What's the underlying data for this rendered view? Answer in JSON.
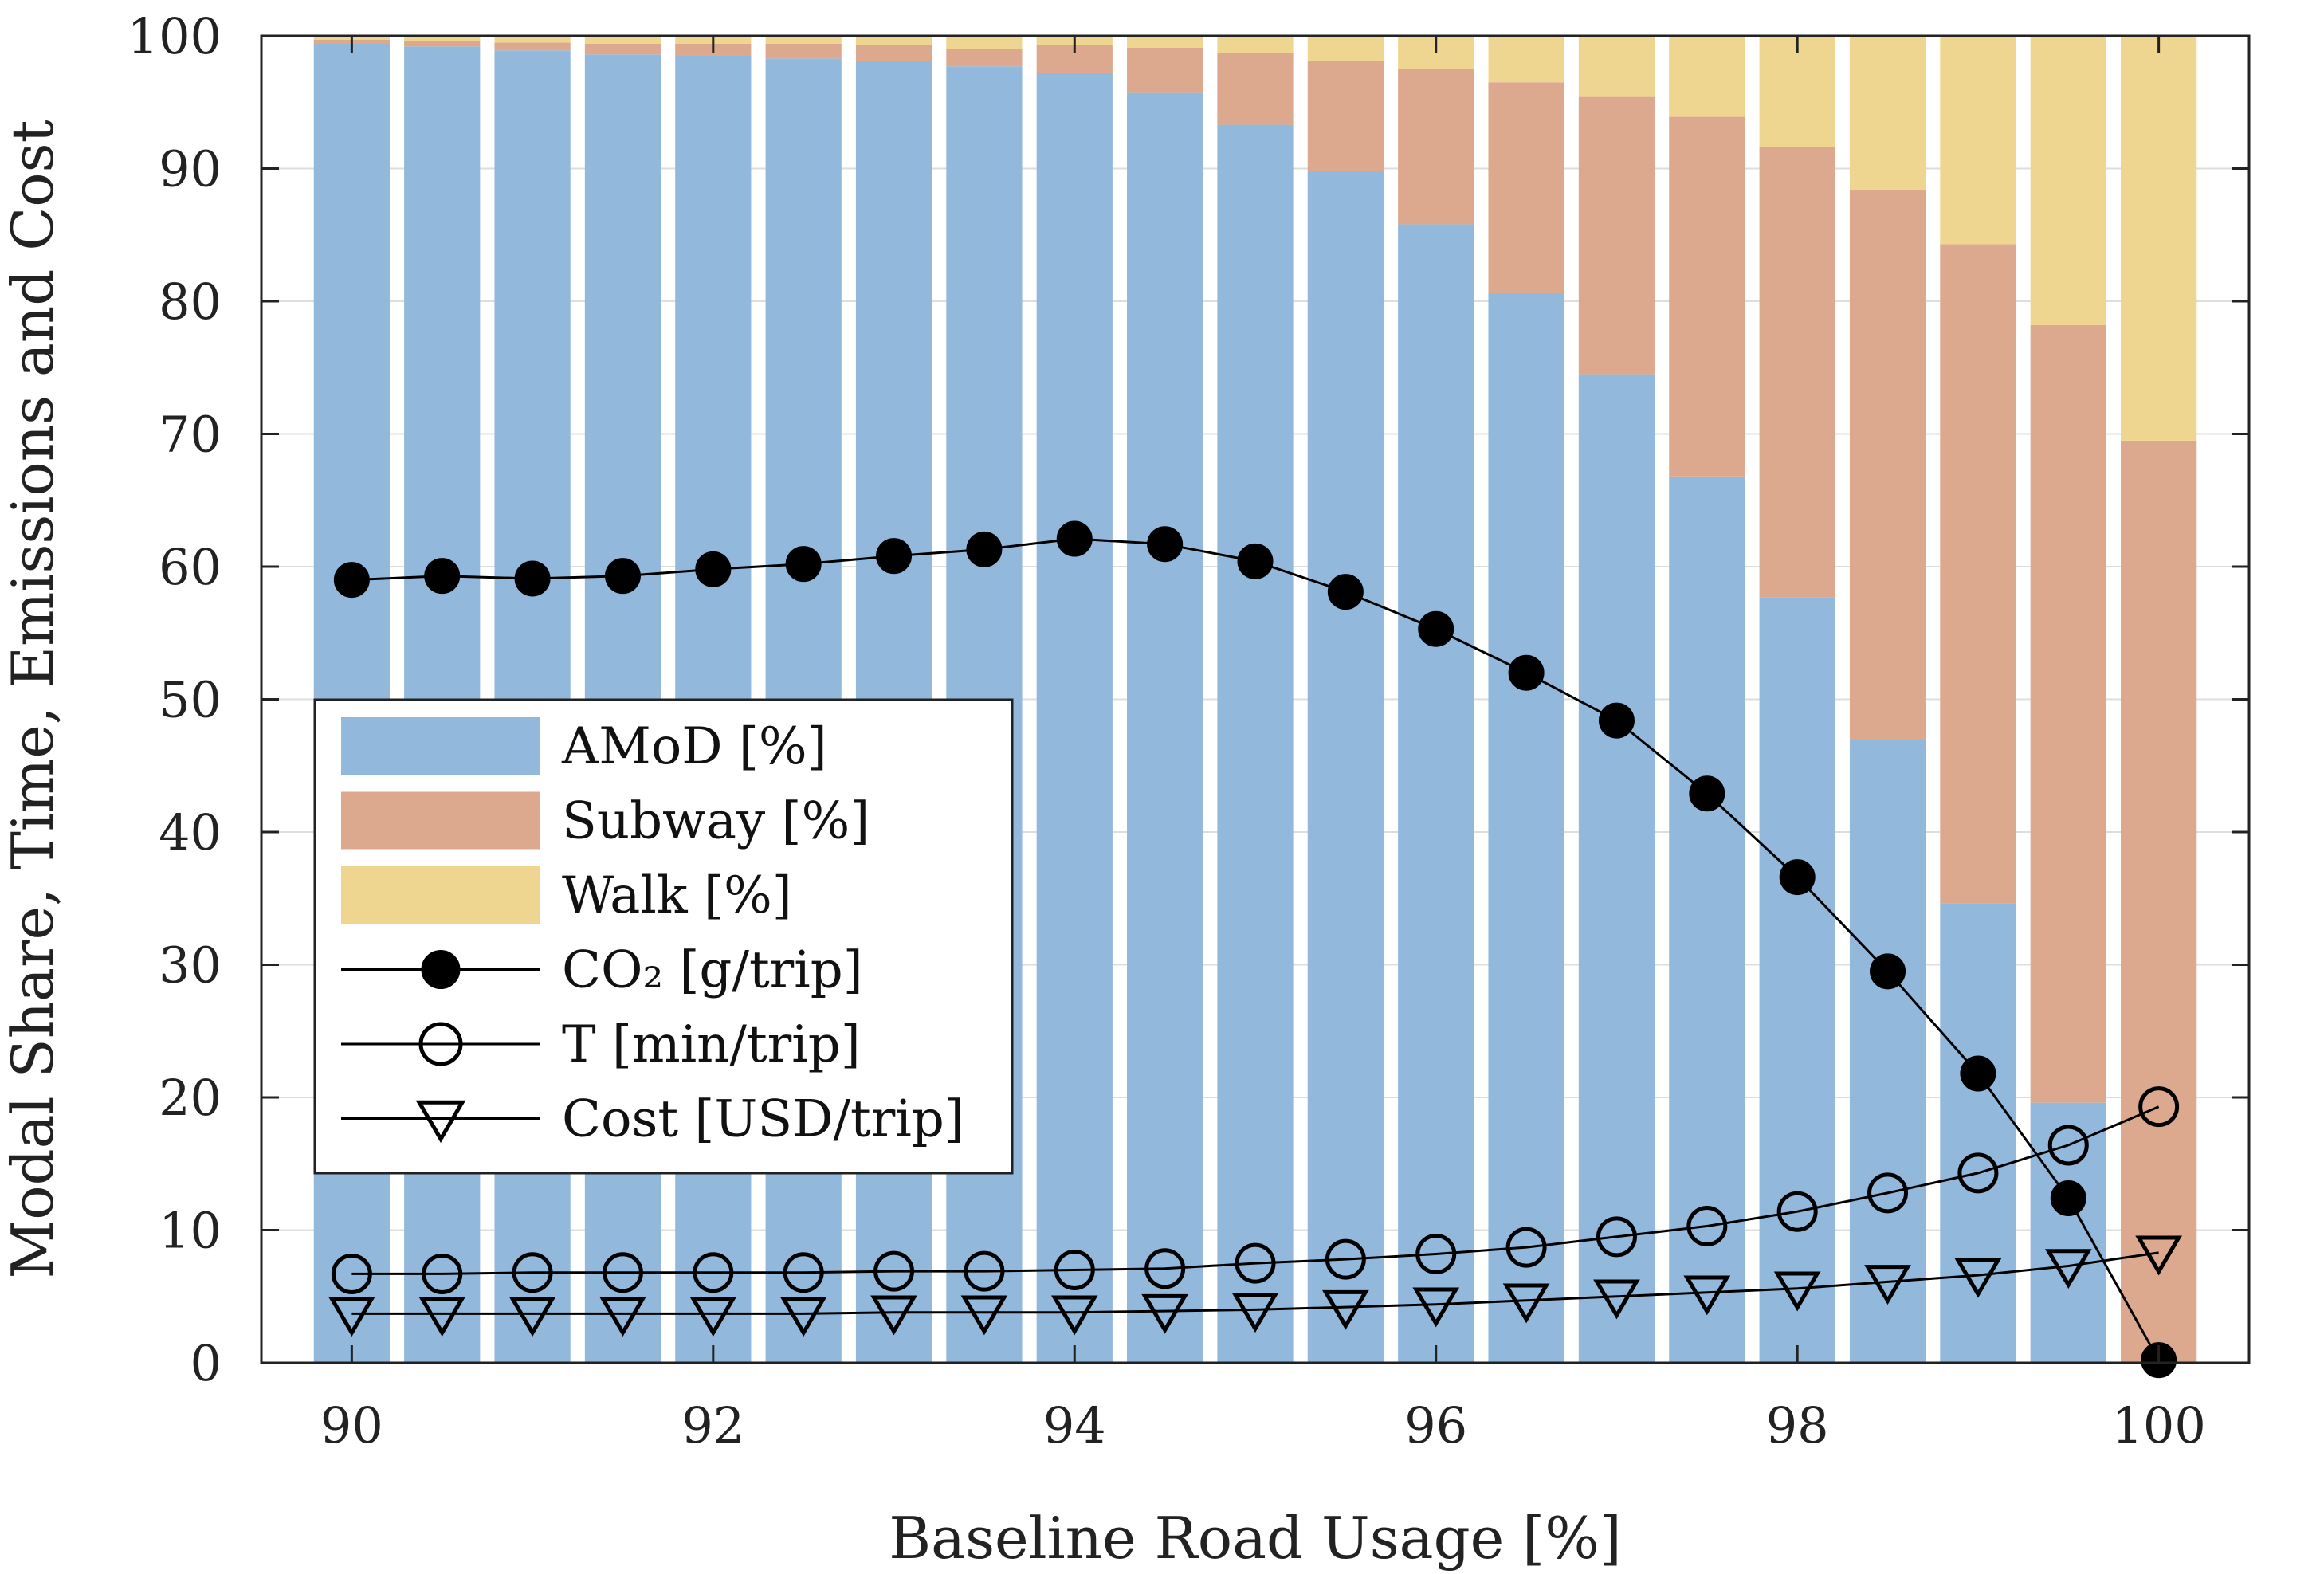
{
  "chart_data": {
    "type": "bar",
    "stacked": true,
    "xlabel": "Baseline Road Usage [%]",
    "ylabel": "Modal Share, Time, Emissions and Cost",
    "xlim": [
      89.5,
      100.5
    ],
    "ylim": [
      0,
      100
    ],
    "xticks": [
      90,
      92,
      94,
      96,
      98,
      100
    ],
    "yticks": [
      0,
      10,
      20,
      30,
      40,
      50,
      60,
      70,
      80,
      90,
      100
    ],
    "grid": "horizontal",
    "legend_position": "center-left",
    "x": [
      90,
      90.5,
      91,
      91.5,
      92,
      92.5,
      93,
      93.5,
      94,
      94.5,
      95,
      95.5,
      96,
      96.5,
      97,
      97.5,
      98,
      98.5,
      99,
      99.5,
      100
    ],
    "bar_series": [
      {
        "name": "AMoD [%]",
        "color": "#92b8dc",
        "values": [
          99.4,
          99.2,
          98.9,
          98.6,
          98.5,
          98.3,
          98.1,
          97.7,
          97.2,
          95.7,
          93.3,
          89.8,
          85.8,
          80.6,
          74.5,
          66.8,
          57.7,
          47.0,
          34.6,
          19.6,
          0
        ]
      },
      {
        "name": "Subway [%]",
        "color": "#dca98e",
        "values": [
          0.3,
          0.4,
          0.6,
          0.8,
          0.9,
          1.1,
          1.2,
          1.3,
          2.1,
          3.4,
          5.4,
          8.3,
          11.7,
          15.9,
          20.9,
          27.1,
          33.9,
          41.4,
          49.7,
          58.6,
          69.5
        ]
      },
      {
        "name": "Walk [%]",
        "color": "#efd690",
        "values": [
          0.3,
          0.4,
          0.5,
          0.6,
          0.6,
          0.6,
          0.7,
          1.0,
          0.7,
          0.9,
          1.3,
          1.9,
          2.5,
          3.5,
          4.6,
          6.1,
          8.4,
          11.6,
          15.7,
          21.8,
          30.5
        ]
      }
    ],
    "line_series": [
      {
        "name": "CO₂ [g/trip]",
        "marker": "filled-circle",
        "values": [
          59.0,
          59.3,
          59.1,
          59.3,
          59.8,
          60.2,
          60.8,
          61.3,
          62.1,
          61.7,
          60.4,
          58.1,
          55.3,
          52.0,
          48.4,
          42.9,
          36.6,
          29.5,
          21.8,
          12.4,
          0.2
        ]
      },
      {
        "name": "T [min/trip]",
        "marker": "open-circle",
        "values": [
          6.7,
          6.7,
          6.8,
          6.8,
          6.8,
          6.8,
          6.9,
          6.9,
          7.0,
          7.1,
          7.5,
          7.8,
          8.2,
          8.7,
          9.5,
          10.3,
          11.4,
          12.8,
          14.3,
          16.4,
          19.3
        ]
      },
      {
        "name": "Cost [USD/trip]",
        "marker": "open-triangle-down",
        "values": [
          3.7,
          3.7,
          3.7,
          3.7,
          3.7,
          3.7,
          3.8,
          3.8,
          3.8,
          3.9,
          4.0,
          4.2,
          4.4,
          4.7,
          5.0,
          5.3,
          5.6,
          6.1,
          6.6,
          7.3,
          8.3
        ]
      }
    ]
  }
}
